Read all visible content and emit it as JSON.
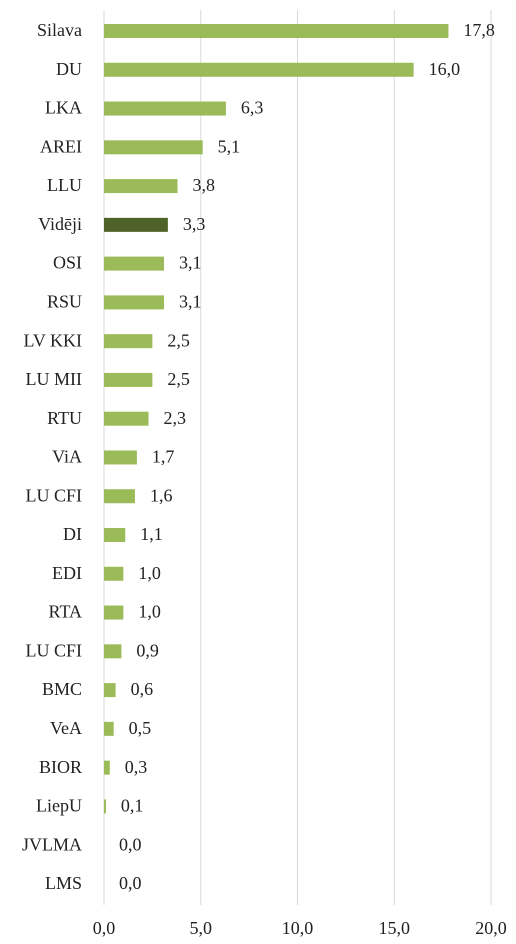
{
  "chart_data": {
    "type": "bar",
    "orientation": "horizontal",
    "categories": [
      "Silava",
      "DU",
      "LKA",
      "AREI",
      "LLU",
      "Vidēji",
      "OSI",
      "RSU",
      "LV KKI",
      "LU MII",
      "RTU",
      "ViA",
      "LU CFI",
      "DI",
      "EDI",
      "RTA",
      "LU CFI",
      "BMC",
      "VeA",
      "BIOR",
      "LiepU",
      "JVLMA",
      "LMS"
    ],
    "values": [
      17.8,
      16.0,
      6.3,
      5.1,
      3.8,
      3.3,
      3.1,
      3.1,
      2.5,
      2.5,
      2.3,
      1.7,
      1.6,
      1.1,
      1.0,
      1.0,
      0.9,
      0.6,
      0.5,
      0.3,
      0.1,
      0.0,
      0.0
    ],
    "value_labels": [
      "17,8",
      "16,0",
      "6,3",
      "5,1",
      "3,8",
      "3,3",
      "3,1",
      "3,1",
      "2,5",
      "2,5",
      "2,3",
      "1,7",
      "1,6",
      "1,1",
      "1,0",
      "1,0",
      "0,9",
      "0,6",
      "0,5",
      "0,3",
      "0,1",
      "0,0",
      "0,0"
    ],
    "colors": [
      "#9bbb59",
      "#9bbb59",
      "#9bbb59",
      "#9bbb59",
      "#9bbb59",
      "#4f6228",
      "#9bbb59",
      "#9bbb59",
      "#9bbb59",
      "#9bbb59",
      "#9bbb59",
      "#9bbb59",
      "#9bbb59",
      "#9bbb59",
      "#9bbb59",
      "#9bbb59",
      "#9bbb59",
      "#9bbb59",
      "#9bbb59",
      "#9bbb59",
      "#9bbb59",
      "#9bbb59",
      "#9bbb59"
    ],
    "xlim": [
      0,
      20
    ],
    "xticks": [
      {
        "value": 0,
        "label": "0,0"
      },
      {
        "value": 5,
        "label": "5,0"
      },
      {
        "value": 10,
        "label": "10,0"
      },
      {
        "value": 15,
        "label": "15,0"
      },
      {
        "value": 20,
        "label": "20,0"
      }
    ],
    "grid": true
  }
}
